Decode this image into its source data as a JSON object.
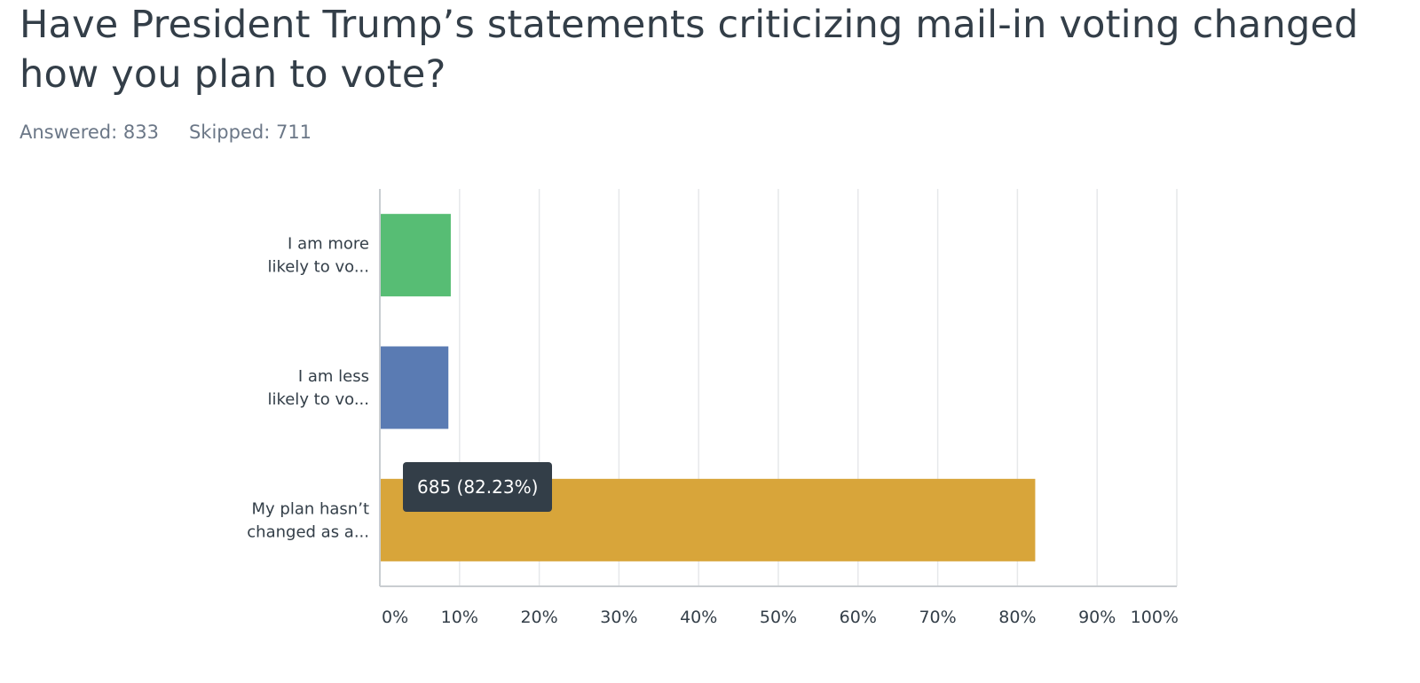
{
  "question": {
    "title": "Have President Trump’s statements criticizing mail-in voting changed how you plan to vote?"
  },
  "stats": {
    "answered": "Answered: 833",
    "skipped": "Skipped: 711"
  },
  "tooltip": {
    "text": "685 (82.23%)"
  },
  "chart_data": {
    "type": "bar",
    "orientation": "horizontal",
    "title": "Have President Trump’s statements criticizing mail-in voting changed how you plan to vote?",
    "xlabel": "",
    "ylabel": "",
    "categories": [
      [
        "I am more",
        "likely to vo..."
      ],
      [
        "I am less",
        "likely to vo..."
      ],
      [
        "My plan hasn’t",
        "changed as a..."
      ]
    ],
    "values": [
      8.9,
      8.6,
      82.23
    ],
    "colors": [
      "#57bd74",
      "#5a7bb3",
      "#d8a53a"
    ],
    "xlim": [
      0,
      100
    ],
    "ticks": [
      0,
      10,
      20,
      30,
      40,
      50,
      60,
      70,
      80,
      90,
      100
    ],
    "tick_labels": [
      "0%",
      "10%",
      "20%",
      "30%",
      "40%",
      "50%",
      "60%",
      "70%",
      "80%",
      "90%",
      "100%"
    ],
    "grid": true
  }
}
